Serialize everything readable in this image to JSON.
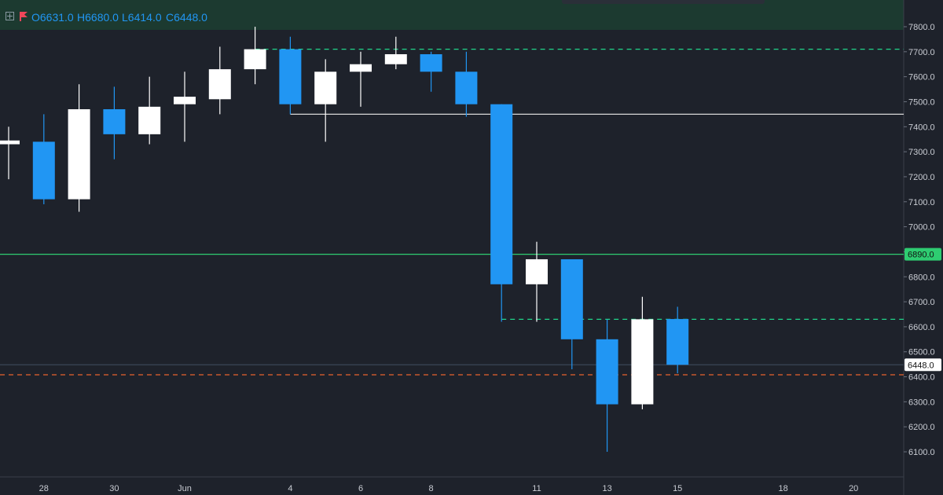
{
  "header": {
    "open_label": "O",
    "open_value": "6631.0",
    "high_label": "H",
    "high_value": "6680.0",
    "low_label": "L",
    "low_value": "6414.0",
    "close_label": "C",
    "close_value": "6448.0"
  },
  "colors": {
    "background": "#1e222b",
    "header_bg": "#1c3a30",
    "up": "#ffffff",
    "down": "#2196f3",
    "green_line": "#2ecc71",
    "dashed_green": "#20d68a",
    "dashed_orange": "#e8622c",
    "white_line": "#d8d8d8"
  },
  "chart_data": {
    "type": "candlestick",
    "ylim": [
      6050,
      7850
    ],
    "y_ticks": [
      6100,
      6200,
      6300,
      6400,
      6500,
      6600,
      6700,
      6800,
      6900,
      7000,
      7100,
      7200,
      7300,
      7400,
      7500,
      7600,
      7700,
      7800
    ],
    "x_labels": [
      {
        "index": 1,
        "label": "28"
      },
      {
        "index": 3,
        "label": "30"
      },
      {
        "index": 5,
        "label": "Jun"
      },
      {
        "index": 8,
        "label": "4"
      },
      {
        "index": 10,
        "label": "6"
      },
      {
        "index": 12,
        "label": "8"
      },
      {
        "index": 15,
        "label": "11"
      },
      {
        "index": 17,
        "label": "13"
      },
      {
        "index": 19,
        "label": "15"
      },
      {
        "index": 22,
        "label": "18"
      },
      {
        "index": 24,
        "label": "20"
      }
    ],
    "candles": [
      {
        "i": 0,
        "o": 7330,
        "h": 7400,
        "l": 7190,
        "c": 7345
      },
      {
        "i": 1,
        "o": 7340,
        "h": 7450,
        "l": 7090,
        "c": 7110
      },
      {
        "i": 2,
        "o": 7110,
        "h": 7570,
        "l": 7060,
        "c": 7470
      },
      {
        "i": 3,
        "o": 7470,
        "h": 7560,
        "l": 7270,
        "c": 7370
      },
      {
        "i": 4,
        "o": 7370,
        "h": 7600,
        "l": 7330,
        "c": 7480
      },
      {
        "i": 5,
        "o": 7490,
        "h": 7620,
        "l": 7340,
        "c": 7520
      },
      {
        "i": 6,
        "o": 7510,
        "h": 7720,
        "l": 7450,
        "c": 7630
      },
      {
        "i": 7,
        "o": 7630,
        "h": 7800,
        "l": 7570,
        "c": 7710
      },
      {
        "i": 8,
        "o": 7710,
        "h": 7760,
        "l": 7450,
        "c": 7490
      },
      {
        "i": 9,
        "o": 7490,
        "h": 7670,
        "l": 7340,
        "c": 7620
      },
      {
        "i": 10,
        "o": 7620,
        "h": 7700,
        "l": 7480,
        "c": 7650
      },
      {
        "i": 11,
        "o": 7650,
        "h": 7760,
        "l": 7630,
        "c": 7690
      },
      {
        "i": 12,
        "o": 7690,
        "h": 7700,
        "l": 7540,
        "c": 7620
      },
      {
        "i": 13,
        "o": 7620,
        "h": 7700,
        "l": 7440,
        "c": 7490
      },
      {
        "i": 14,
        "o": 7490,
        "h": 7490,
        "l": 6620,
        "c": 6770
      },
      {
        "i": 15,
        "o": 6770,
        "h": 6940,
        "l": 6620,
        "c": 6870
      },
      {
        "i": 16,
        "o": 6870,
        "h": 6870,
        "l": 6430,
        "c": 6550
      },
      {
        "i": 17,
        "o": 6550,
        "h": 6630,
        "l": 6100,
        "c": 6290
      },
      {
        "i": 18,
        "o": 6290,
        "h": 6720,
        "l": 6270,
        "c": 6630
      },
      {
        "i": 19,
        "o": 6631,
        "h": 6680,
        "l": 6414,
        "c": 6448
      }
    ],
    "horizontal_lines": [
      {
        "price": 7710,
        "style": "dashed",
        "color": "#20d68a",
        "from_index": 7
      },
      {
        "price": 7450,
        "style": "solid",
        "color": "#d8d8d8",
        "from_index": 8
      },
      {
        "price": 6890,
        "style": "solid",
        "color": "#2ecc71",
        "from_index": -1,
        "label": "6890.0"
      },
      {
        "price": 6630,
        "style": "dashed",
        "color": "#20d68a",
        "from_index": 14
      },
      {
        "price": 6448,
        "style": "solid",
        "color": "#3a4657",
        "from_index": -1,
        "label": "6448.0"
      },
      {
        "price": 6408,
        "style": "dashed",
        "color": "#e8622c",
        "from_index": -1
      }
    ]
  }
}
